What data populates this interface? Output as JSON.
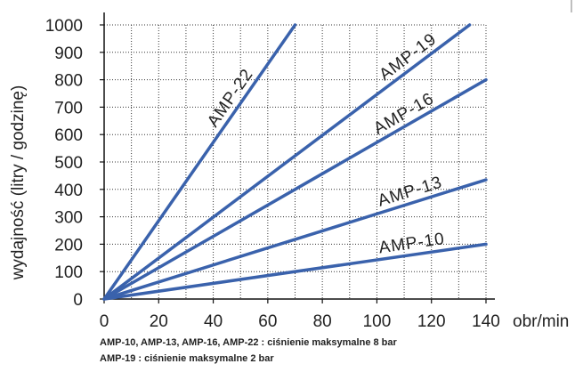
{
  "chart_data": {
    "type": "line",
    "xlabel": "obr/min",
    "ylabel": "wydajność (litry / godzinę)",
    "xlim": [
      0,
      140
    ],
    "ylim": [
      0,
      1000
    ],
    "xticks": [
      0,
      20,
      40,
      60,
      80,
      100,
      120,
      140
    ],
    "yticks": [
      0,
      100,
      200,
      300,
      400,
      500,
      600,
      700,
      800,
      900,
      1000
    ],
    "grid": true,
    "line_color": "#3a62ac",
    "series": [
      {
        "name": "AMP-22",
        "x": [
          0,
          70
        ],
        "y": [
          0,
          1000
        ]
      },
      {
        "name": "AMP-19",
        "x": [
          0,
          134
        ],
        "y": [
          0,
          1000
        ]
      },
      {
        "name": "AMP-16",
        "x": [
          0,
          140
        ],
        "y": [
          0,
          800
        ]
      },
      {
        "name": "AMP-13",
        "x": [
          0,
          140
        ],
        "y": [
          0,
          435
        ]
      },
      {
        "name": "AMP-10",
        "x": [
          0,
          140
        ],
        "y": [
          0,
          200
        ]
      }
    ]
  },
  "notes": [
    "AMP-10, AMP-13, AMP-16, AMP-22 : ciśnienie maksymalne 8 bar",
    "AMP-19 : ciśnienie maksymalne 2 bar"
  ]
}
